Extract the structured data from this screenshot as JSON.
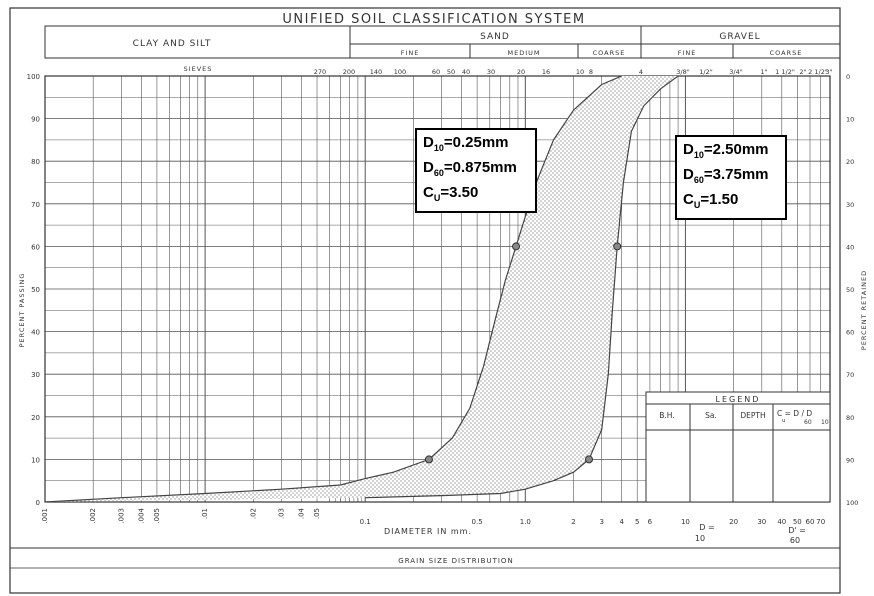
{
  "header": {
    "title": "UNIFIED SOIL CLASSIFICATION SYSTEM",
    "clay_silt": "CLAY AND SILT",
    "sand": "SAND",
    "gravel": "GRAVEL",
    "sand_fine": "FINE",
    "sand_medium": "MEDIUM",
    "sand_coarse": "COARSE",
    "gravel_fine": "FINE",
    "gravel_coarse": "COARSE"
  },
  "sieves": {
    "label": "SIEVES",
    "items": [
      "270",
      "200",
      "140",
      "100",
      "60",
      "50",
      "40",
      "30",
      "20",
      "16",
      "10",
      "8",
      "4",
      "3/8\"",
      "1/2\"",
      "3/4\"",
      "1\"",
      "1 1/2\"",
      "2\"",
      "2 1/2\"",
      "3\""
    ]
  },
  "axes": {
    "xlabel": "DIAMETER IN mm.",
    "ylabel_left": "PERCENT PASSING",
    "ylabel_right": "PERCENT RETAINED",
    "x_ticks": [
      ".001",
      ".002",
      ".003",
      ".004",
      ".005",
      ".01",
      ".02",
      ".03",
      ".04",
      ".05",
      "0.1",
      "0.5",
      "1.0",
      "2",
      "3",
      "4",
      "5",
      "6",
      "10",
      "20",
      "30",
      "40",
      "50",
      "60",
      "70"
    ],
    "x_tick_values": [
      0.001,
      0.002,
      0.003,
      0.004,
      0.005,
      0.01,
      0.02,
      0.03,
      0.04,
      0.05,
      0.1,
      0.5,
      1.0,
      2,
      3,
      4,
      5,
      6,
      10,
      20,
      30,
      40,
      50,
      60,
      70
    ],
    "y_left": [
      "0",
      "10",
      "20",
      "30",
      "40",
      "50",
      "60",
      "70",
      "80",
      "90",
      "100"
    ],
    "y_right": [
      "100",
      "90",
      "80",
      "70",
      "60",
      "50",
      "40",
      "30",
      "20",
      "10",
      "0"
    ]
  },
  "footer": {
    "title": "GRAIN SIZE DISTRIBUTION",
    "d10_top": "D =",
    "d10_bottom": "10",
    "d60_top": "D' =",
    "d60_bottom": "60"
  },
  "legend": {
    "title": "LEGEND",
    "cols": [
      "B.H.",
      "Sa.",
      "DEPTH",
      "C = D  / D"
    ],
    "cu_sub": "u",
    "cu_d60": "60",
    "cu_d10": "10"
  },
  "annotations": {
    "fine": {
      "d10": "=0.25mm",
      "d60": "=0.875mm",
      "cu": "=3.50"
    },
    "coarse": {
      "d10": "=2.50mm",
      "d60": "=3.75mm",
      "cu": "=1.50"
    },
    "d_letter": "D",
    "c_letter": "C",
    "sub10": "10",
    "sub60": "60",
    "subu": "U"
  },
  "chart_data": {
    "type": "line",
    "x_scale": "log",
    "xlim": [
      0.001,
      80
    ],
    "ylim": [
      0,
      100
    ],
    "grid": true,
    "series": [
      {
        "values": [
          [
            0.001,
            0
          ],
          [
            0.003,
            1
          ],
          [
            0.01,
            2
          ],
          [
            0.03,
            3
          ],
          [
            0.07,
            4
          ],
          [
            0.1,
            5.5
          ],
          [
            0.15,
            7
          ],
          [
            0.25,
            10
          ],
          [
            0.35,
            15
          ],
          [
            0.45,
            22
          ],
          [
            0.55,
            32
          ],
          [
            0.65,
            43
          ],
          [
            0.75,
            52
          ],
          [
            0.875,
            60
          ],
          [
            1.0,
            67
          ],
          [
            1.2,
            76
          ],
          [
            1.5,
            85
          ],
          [
            2.0,
            92
          ],
          [
            3.0,
            98
          ],
          [
            4.0,
            100
          ]
        ]
      },
      {
        "values": [
          [
            0.1,
            1
          ],
          [
            0.3,
            1.5
          ],
          [
            0.7,
            2
          ],
          [
            1.0,
            3
          ],
          [
            1.5,
            5
          ],
          [
            2.0,
            7
          ],
          [
            2.5,
            10
          ],
          [
            3.0,
            17
          ],
          [
            3.3,
            30
          ],
          [
            3.5,
            45
          ],
          [
            3.75,
            60
          ],
          [
            4.1,
            75
          ],
          [
            4.6,
            87
          ],
          [
            5.5,
            93
          ],
          [
            7.0,
            97
          ],
          [
            9.0,
            100
          ]
        ]
      }
    ],
    "markers": [
      {
        "x": 0.25,
        "y": 10
      },
      {
        "x": 0.875,
        "y": 60
      },
      {
        "x": 2.5,
        "y": 10
      },
      {
        "x": 3.75,
        "y": 60
      }
    ]
  }
}
